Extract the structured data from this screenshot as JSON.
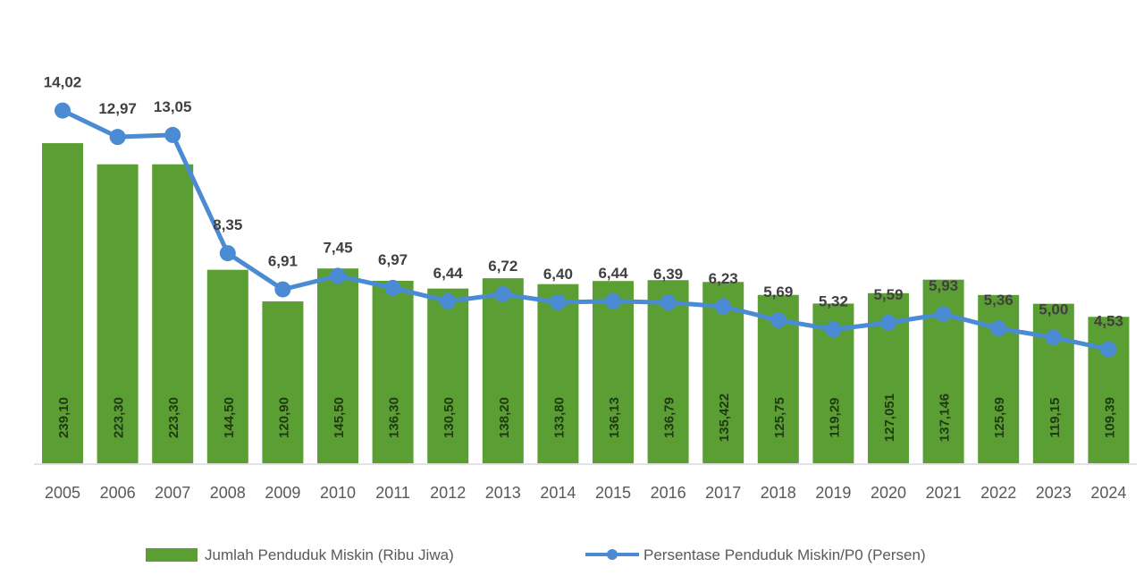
{
  "chart_data": {
    "type": "bar+line",
    "categories": [
      "2005",
      "2006",
      "2007",
      "2008",
      "2009",
      "2010",
      "2011",
      "2012",
      "2013",
      "2014",
      "2015",
      "2016",
      "2017",
      "2018",
      "2019",
      "2020",
      "2021",
      "2022",
      "2023",
      "2024"
    ],
    "series": [
      {
        "name": "Jumlah Penduduk Miskin (Ribu Jiwa)",
        "type": "bar",
        "color": "#5b9e34",
        "values": [
          239.1,
          223.3,
          223.3,
          144.5,
          120.9,
          145.5,
          136.3,
          130.5,
          138.2,
          133.8,
          136.13,
          136.79,
          135.422,
          125.75,
          119.29,
          127.051,
          137.146,
          125.69,
          119.15,
          109.39
        ],
        "labels": [
          "239,10",
          "223,30",
          "223,30",
          "144,50",
          "120,90",
          "145,50",
          "136,30",
          "130,50",
          "138,20",
          "133,80",
          "136,13",
          "136,79",
          "135,422",
          "125,75",
          "119,29",
          "127,051",
          "137,146",
          "125,69",
          "119,15",
          "109,39"
        ]
      },
      {
        "name": "Persentase Penduduk Miskin/P0 (Persen)",
        "type": "line",
        "color": "#4a8bd4",
        "values": [
          14.02,
          12.97,
          13.05,
          8.35,
          6.91,
          7.45,
          6.97,
          6.44,
          6.72,
          6.4,
          6.44,
          6.39,
          6.23,
          5.69,
          5.32,
          5.59,
          5.93,
          5.36,
          5.0,
          4.53
        ],
        "labels": [
          "14,02",
          "12,97",
          "13,05",
          "8,35",
          "6,91",
          "7,45",
          "6,97",
          "6,44",
          "6,72",
          "6,40",
          "6,44",
          "6,39",
          "6,23",
          "5,69",
          "5,32",
          "5,59",
          "5,93",
          "5,36",
          "5,00",
          "4,53"
        ]
      }
    ],
    "legend_position": "bottom",
    "grid": false,
    "y_axis_visible": false
  }
}
